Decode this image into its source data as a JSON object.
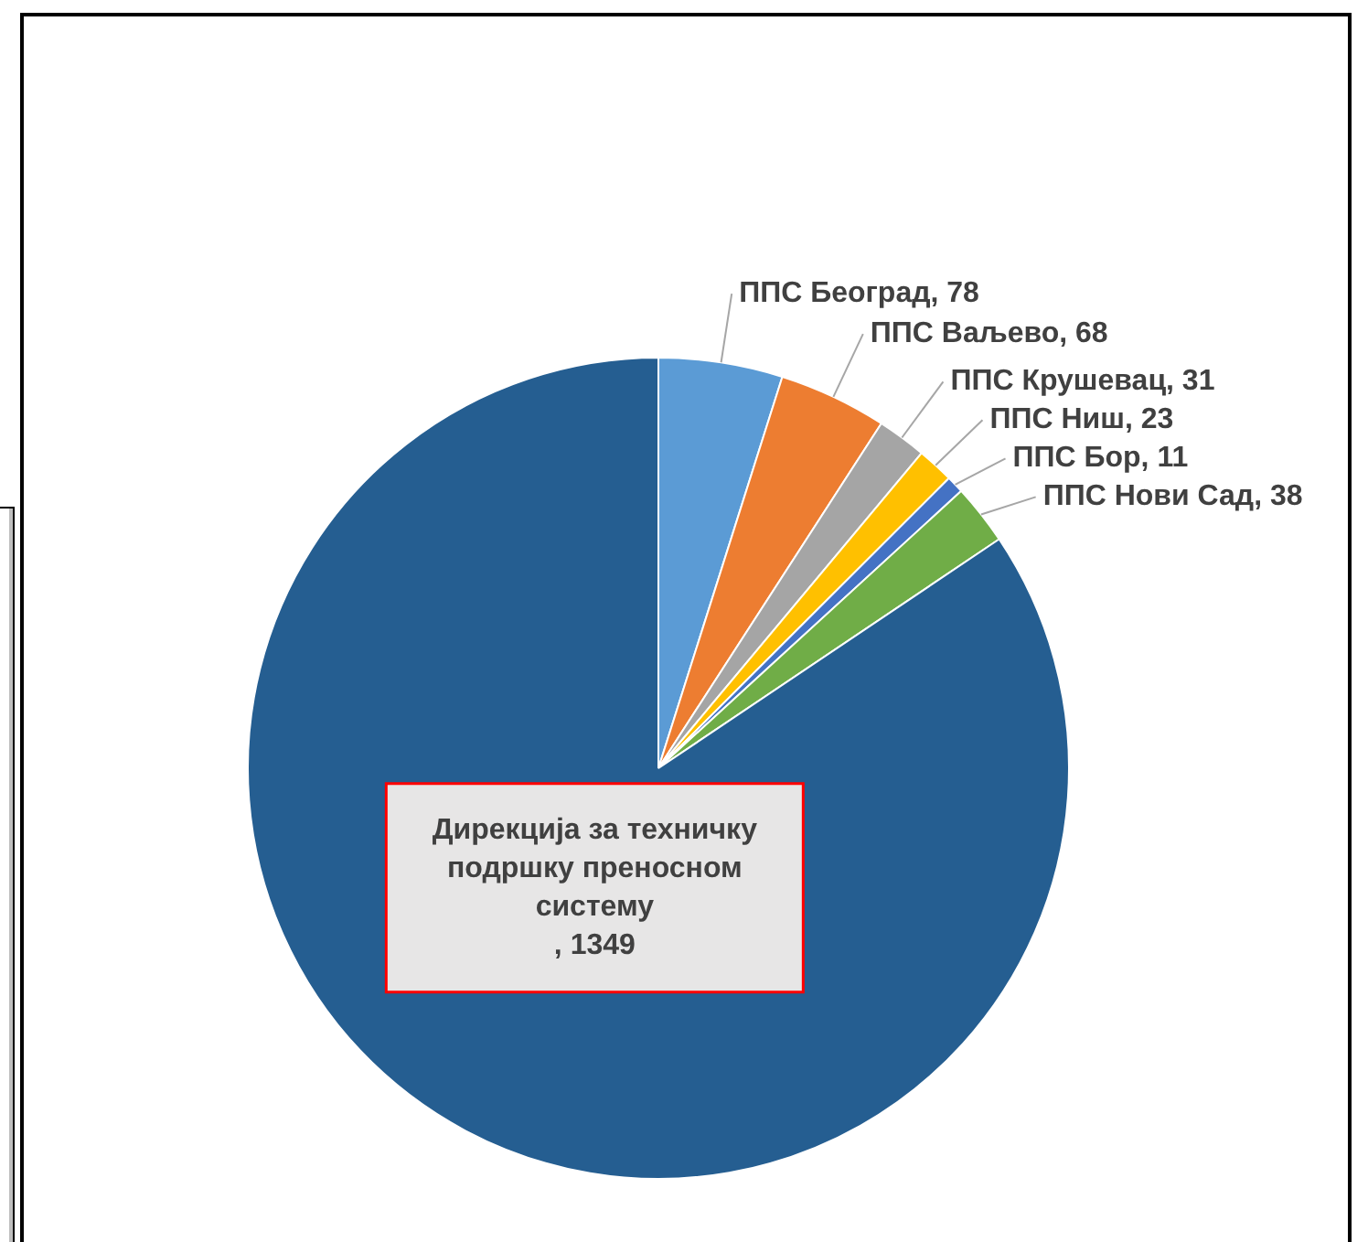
{
  "chart_data": {
    "type": "pie",
    "categories": [
      "ППС Београд",
      "ППС Ваљево",
      "ППС Крушевац",
      "ППС Ниш",
      "ППС Бор",
      "ППС Нови Сад",
      "Дирекција за техничку подршку преносном систему"
    ],
    "values": [
      78,
      68,
      31,
      23,
      11,
      38,
      1349
    ],
    "value_labels": [
      ", 78",
      ", 68",
      ", 31",
      ", 23",
      ", 11",
      ", 38",
      ", 1349"
    ],
    "colors": [
      "#5b9bd5",
      "#ed7d31",
      "#a5a5a5",
      "#ffc000",
      "#4472c4",
      "#70ad47",
      "#255e91"
    ],
    "legend": false
  }
}
